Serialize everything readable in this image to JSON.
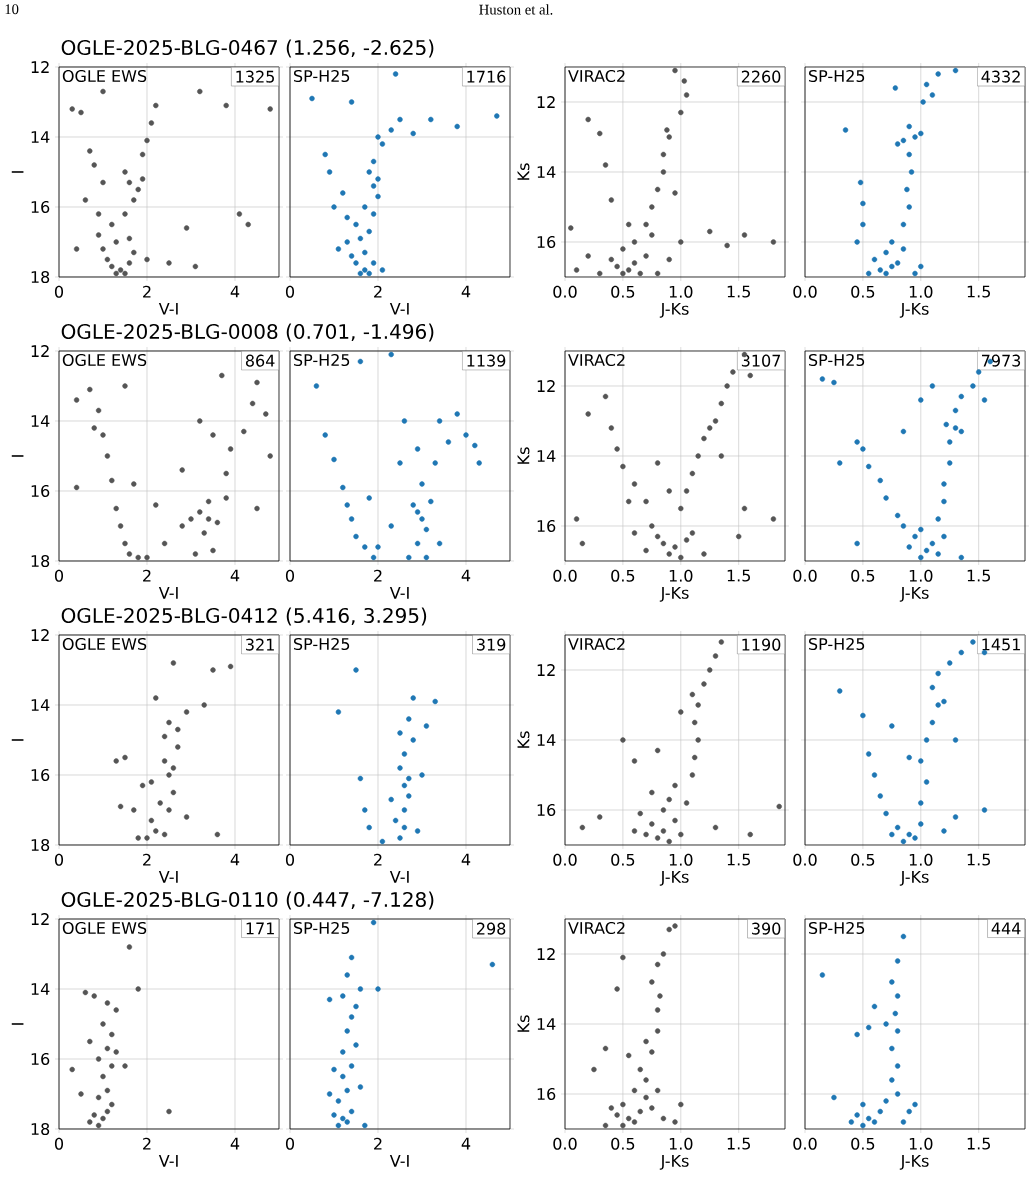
{
  "chart_data": [
    {
      "type": "scatter",
      "title": "OGLE-2025-BLG-0467 (1.256, -2.625)",
      "xlabel": "V-I",
      "ylabel": "I",
      "annotations": [
        "OGLE EWS",
        "1325"
      ],
      "xlim": [
        0,
        5
      ],
      "ylim": [
        18,
        12
      ],
      "xticks": [
        0,
        2,
        4
      ],
      "yticks": [
        12,
        14,
        16,
        18
      ],
      "grid": true,
      "marker": "circle",
      "color": "#555555",
      "x": [
        1.3,
        1.4,
        1.2,
        1.5,
        1.1,
        1.6,
        1.0,
        1.3,
        1.7,
        0.9,
        1.2,
        1.6,
        1.5,
        1.7,
        1.6,
        1.8,
        1.5,
        1.9,
        1.9,
        2.0,
        2.1,
        1.0,
        0.8,
        0.7,
        0.6,
        0.9,
        0.5,
        0.3,
        1.0,
        2.2,
        3.2,
        3.8,
        4.8,
        4.1,
        4.3,
        2.9,
        2.5,
        3.1,
        0.4,
        2.0
      ],
      "values": [
        17.9,
        17.8,
        17.7,
        17.9,
        17.5,
        17.6,
        17.2,
        17.0,
        17.3,
        16.8,
        16.5,
        16.9,
        16.2,
        15.8,
        15.3,
        15.5,
        15.0,
        15.2,
        14.5,
        14.1,
        13.6,
        15.3,
        14.8,
        14.4,
        15.8,
        16.2,
        13.3,
        13.2,
        12.7,
        13.1,
        12.7,
        13.1,
        13.2,
        16.2,
        16.5,
        16.6,
        17.6,
        17.7,
        17.2,
        17.5
      ]
    },
    {
      "type": "scatter",
      "xlabel": "V-I",
      "annotations": [
        "SP-H25",
        "1716"
      ],
      "xlim": [
        0,
        5
      ],
      "ylim": [
        18,
        12
      ],
      "xticks": [
        0,
        2,
        4
      ],
      "yticks": [
        12,
        14,
        16,
        18
      ],
      "tick_labels": "x",
      "grid": true,
      "marker": "circle",
      "color": "#1f77b4",
      "x": [
        1.6,
        1.7,
        1.5,
        1.8,
        1.4,
        1.7,
        1.9,
        1.3,
        1.6,
        1.8,
        1.9,
        1.7,
        2.0,
        1.9,
        1.8,
        2.0,
        1.9,
        2.1,
        2.3,
        2.5,
        2.8,
        3.2,
        3.8,
        4.7,
        1.2,
        1.0,
        0.9,
        0.8,
        0.5,
        1.4,
        2.4,
        1.1,
        2.1,
        1.5,
        2.0,
        1.3
      ],
      "values": [
        17.9,
        17.8,
        17.6,
        17.9,
        17.4,
        17.3,
        17.6,
        17.0,
        16.9,
        16.7,
        16.2,
        16.0,
        15.7,
        15.4,
        15.0,
        15.2,
        14.7,
        14.2,
        13.8,
        13.5,
        13.9,
        13.5,
        13.7,
        13.4,
        15.6,
        16.0,
        15.0,
        14.5,
        12.9,
        13.0,
        12.2,
        17.2,
        17.8,
        16.5,
        14.0,
        16.3
      ]
    },
    {
      "type": "scatter",
      "xlabel": "J-Ks",
      "ylabel": "Ks",
      "annotations": [
        "VIRAC2",
        "2260"
      ],
      "xlim": [
        0,
        1.9
      ],
      "ylim": [
        17,
        11
      ],
      "xticks": [
        {
          "value": 0,
          "label": "0.0"
        },
        {
          "value": 0.5,
          "label": "0.5"
        },
        {
          "value": 1,
          "label": "1.0"
        },
        {
          "value": 1.5,
          "label": "1.5"
        }
      ],
      "yticks": [
        12,
        14,
        16
      ],
      "grid": true,
      "marker": "circle",
      "color": "#555555",
      "x": [
        0.5,
        0.55,
        0.45,
        0.6,
        0.4,
        0.65,
        0.3,
        0.7,
        0.5,
        0.6,
        0.75,
        0.2,
        0.1,
        0.8,
        0.7,
        0.75,
        0.8,
        0.85,
        0.85,
        0.9,
        0.88,
        1.0,
        1.05,
        1.03,
        0.95,
        0.4,
        0.35,
        0.2,
        0.3,
        0.55,
        0.9,
        1.0,
        1.25,
        1.4,
        1.55,
        1.8,
        0.05,
        0.95
      ],
      "values": [
        16.9,
        16.8,
        16.7,
        16.6,
        16.5,
        16.9,
        16.9,
        16.4,
        16.2,
        16.0,
        15.8,
        16.4,
        16.8,
        16.9,
        15.5,
        15.0,
        14.5,
        14.0,
        13.5,
        13.0,
        12.8,
        12.3,
        11.8,
        11.4,
        11.1,
        14.8,
        13.8,
        12.5,
        12.9,
        15.5,
        16.5,
        16.0,
        15.7,
        16.1,
        15.8,
        16.0,
        15.6,
        14.6
      ]
    },
    {
      "type": "scatter",
      "xlabel": "J-Ks",
      "annotations": [
        "SP-H25",
        "4332"
      ],
      "xlim": [
        0,
        1.9
      ],
      "ylim": [
        17,
        11
      ],
      "xticks": [
        {
          "value": 0,
          "label": "0.0"
        },
        {
          "value": 0.5,
          "label": "0.5"
        },
        {
          "value": 1,
          "label": "1.0"
        },
        {
          "value": 1.5,
          "label": "1.5"
        }
      ],
      "yticks": [
        12,
        14,
        16
      ],
      "tick_labels": "x",
      "grid": true,
      "marker": "circle",
      "color": "#1f77b4",
      "x": [
        0.7,
        0.65,
        0.75,
        0.6,
        0.7,
        0.8,
        0.55,
        0.85,
        0.75,
        0.85,
        0.9,
        0.88,
        0.92,
        0.9,
        0.85,
        0.95,
        1.0,
        0.9,
        1.02,
        1.05,
        1.15,
        1.3,
        0.78,
        0.5,
        0.48,
        0.5,
        0.35,
        0.45,
        0.95,
        1.0,
        1.1,
        0.8
      ],
      "values": [
        16.9,
        16.8,
        16.7,
        16.5,
        16.3,
        16.6,
        16.9,
        16.2,
        16.0,
        15.5,
        15.0,
        14.5,
        14.0,
        13.5,
        13.1,
        13.0,
        12.9,
        12.7,
        12.0,
        11.5,
        11.2,
        11.1,
        11.6,
        14.9,
        14.3,
        15.5,
        12.8,
        16.0,
        16.9,
        16.7,
        11.8,
        13.2
      ]
    },
    {
      "type": "scatter",
      "title": "OGLE-2025-BLG-0008 (0.701, -1.496)",
      "xlabel": "V-I",
      "ylabel": "I",
      "annotations": [
        "OGLE EWS",
        "864"
      ],
      "xlim": [
        0,
        5
      ],
      "ylim": [
        18,
        12
      ],
      "xticks": [
        0,
        2,
        4
      ],
      "yticks": [
        12,
        14,
        16,
        18
      ],
      "grid": true,
      "marker": "circle",
      "color": "#555555",
      "x": [
        1.3,
        1.4,
        1.5,
        1.6,
        1.8,
        1.2,
        1.1,
        1.0,
        0.8,
        0.9,
        0.4,
        0.7,
        1.5,
        1.7,
        2.0,
        2.4,
        2.8,
        3.0,
        3.2,
        3.4,
        3.6,
        3.3,
        3.1,
        3.5,
        3.8,
        3.8,
        3.9,
        3.5,
        3.2,
        2.8,
        4.2,
        4.4,
        4.7,
        4.5,
        3.7,
        4.8,
        4.5,
        0.4,
        2.2,
        3.4
      ],
      "values": [
        16.5,
        17.0,
        17.5,
        17.8,
        17.9,
        15.7,
        15.0,
        14.4,
        14.2,
        13.7,
        13.4,
        13.1,
        13.0,
        15.8,
        17.9,
        17.5,
        17.0,
        16.8,
        16.6,
        16.8,
        16.9,
        17.2,
        17.8,
        17.7,
        16.2,
        15.5,
        14.8,
        14.4,
        14.0,
        15.4,
        14.3,
        13.5,
        13.8,
        12.9,
        12.7,
        15.0,
        16.5,
        15.9,
        16.4,
        16.3
      ]
    },
    {
      "type": "scatter",
      "xlabel": "V-I",
      "annotations": [
        "SP-H25",
        "1139"
      ],
      "xlim": [
        0,
        5
      ],
      "ylim": [
        18,
        12
      ],
      "xticks": [
        0,
        2,
        4
      ],
      "yticks": [
        12,
        14,
        16,
        18
      ],
      "tick_labels": "x",
      "grid": true,
      "marker": "circle",
      "color": "#1f77b4",
      "x": [
        1.3,
        1.4,
        1.5,
        1.7,
        1.9,
        2.0,
        1.2,
        1.0,
        0.8,
        0.6,
        1.6,
        2.3,
        2.8,
        2.9,
        3.0,
        3.1,
        2.9,
        3.1,
        2.7,
        3.2,
        3.0,
        3.3,
        2.9,
        3.6,
        4.0,
        4.2,
        3.8,
        3.4,
        2.6,
        4.3,
        2.3,
        1.8,
        3.4,
        2.5
      ],
      "values": [
        16.4,
        16.8,
        17.3,
        17.6,
        17.9,
        17.6,
        15.9,
        15.1,
        14.4,
        13.0,
        12.3,
        12.1,
        16.4,
        16.6,
        16.8,
        17.1,
        17.5,
        17.9,
        17.9,
        16.3,
        15.8,
        15.2,
        14.8,
        14.6,
        14.4,
        14.7,
        13.8,
        14.0,
        14.0,
        15.2,
        17.0,
        16.2,
        17.5,
        15.2
      ]
    },
    {
      "type": "scatter",
      "xlabel": "J-Ks",
      "ylabel": "Ks",
      "annotations": [
        "VIRAC2",
        "3107"
      ],
      "xlim": [
        0,
        1.9
      ],
      "ylim": [
        17,
        11
      ],
      "xticks": [
        {
          "value": 0,
          "label": "0.0"
        },
        {
          "value": 0.5,
          "label": "0.5"
        },
        {
          "value": 1,
          "label": "1.0"
        },
        {
          "value": 1.5,
          "label": "1.5"
        }
      ],
      "yticks": [
        12,
        14,
        16
      ],
      "grid": true,
      "marker": "circle",
      "color": "#555555",
      "x": [
        0.9,
        0.95,
        0.85,
        1.0,
        0.8,
        1.05,
        0.75,
        0.7,
        1.1,
        1.2,
        0.6,
        0.55,
        0.6,
        0.5,
        0.45,
        0.4,
        0.2,
        0.35,
        0.9,
        1.0,
        1.05,
        1.1,
        1.15,
        1.2,
        1.25,
        1.3,
        1.35,
        1.4,
        1.45,
        1.55,
        1.6,
        1.35,
        1.5,
        1.8,
        1.55,
        0.15,
        0.1,
        0.8,
        0.7
      ],
      "values": [
        16.8,
        16.6,
        16.5,
        16.9,
        16.3,
        16.4,
        16.0,
        16.7,
        16.2,
        16.8,
        16.2,
        15.3,
        14.8,
        14.3,
        13.8,
        13.2,
        12.8,
        12.3,
        15.0,
        15.5,
        15.0,
        14.5,
        14.0,
        13.5,
        13.2,
        13.0,
        12.5,
        12.0,
        11.6,
        11.1,
        11.7,
        14.0,
        16.3,
        15.8,
        15.5,
        16.5,
        15.8,
        14.2,
        15.3
      ]
    },
    {
      "type": "scatter",
      "xlabel": "J-Ks",
      "annotations": [
        "SP-H25",
        "7973"
      ],
      "xlim": [
        0,
        1.9
      ],
      "ylim": [
        17,
        11
      ],
      "xticks": [
        {
          "value": 0,
          "label": "0.0"
        },
        {
          "value": 0.5,
          "label": "0.5"
        },
        {
          "value": 1,
          "label": "1.0"
        },
        {
          "value": 1.5,
          "label": "1.5"
        }
      ],
      "yticks": [
        12,
        14,
        16
      ],
      "tick_labels": "x",
      "grid": true,
      "marker": "circle",
      "color": "#1f77b4",
      "x": [
        1.0,
        1.05,
        1.1,
        0.95,
        1.15,
        0.9,
        1.2,
        1.0,
        0.85,
        0.8,
        0.7,
        0.65,
        0.55,
        0.5,
        0.45,
        0.3,
        0.15,
        0.25,
        1.15,
        1.2,
        1.2,
        1.25,
        1.25,
        1.3,
        1.22,
        1.35,
        1.3,
        1.35,
        1.45,
        1.5,
        1.6,
        1.55,
        1.0,
        0.45,
        1.35,
        0.85,
        1.1
      ],
      "values": [
        16.9,
        16.7,
        16.5,
        16.3,
        16.8,
        16.6,
        16.3,
        16.1,
        16.0,
        15.7,
        15.2,
        14.7,
        14.3,
        13.8,
        13.6,
        14.2,
        11.8,
        11.9,
        15.8,
        15.3,
        14.8,
        14.2,
        13.6,
        13.2,
        13.1,
        13.3,
        12.7,
        12.3,
        12.0,
        11.6,
        11.3,
        12.4,
        12.4,
        16.5,
        16.9,
        13.3,
        12.0
      ]
    },
    {
      "type": "scatter",
      "title": "OGLE-2025-BLG-0412 (5.416, 3.295)",
      "xlabel": "V-I",
      "ylabel": "I",
      "annotations": [
        "OGLE EWS",
        "321"
      ],
      "xlim": [
        0,
        5
      ],
      "ylim": [
        18,
        12
      ],
      "xticks": [
        0,
        2,
        4
      ],
      "yticks": [
        12,
        14,
        16,
        18
      ],
      "grid": true,
      "marker": "circle",
      "color": "#555555",
      "x": [
        2.0,
        2.2,
        2.1,
        2.4,
        1.8,
        2.5,
        2.3,
        2.6,
        2.5,
        2.6,
        2.4,
        2.7,
        2.7,
        2.4,
        2.9,
        3.3,
        3.5,
        3.9,
        2.6,
        1.5,
        1.3,
        1.9,
        1.7,
        2.2,
        1.4,
        2.9,
        3.6,
        2.1,
        2.5
      ],
      "values": [
        17.8,
        17.6,
        17.3,
        17.7,
        17.8,
        17.0,
        16.8,
        16.5,
        16.0,
        15.8,
        15.6,
        15.2,
        14.7,
        14.9,
        14.2,
        14.0,
        13.0,
        12.9,
        12.8,
        15.5,
        15.6,
        16.3,
        17.0,
        13.8,
        16.9,
        17.2,
        17.7,
        16.2,
        14.5
      ]
    },
    {
      "type": "scatter",
      "xlabel": "V-I",
      "annotations": [
        "SP-H25",
        "319"
      ],
      "xlim": [
        0,
        5
      ],
      "ylim": [
        18,
        12
      ],
      "xticks": [
        0,
        2,
        4
      ],
      "yticks": [
        12,
        14,
        16,
        18
      ],
      "tick_labels": "x",
      "grid": true,
      "marker": "circle",
      "color": "#1f77b4",
      "x": [
        2.5,
        2.6,
        2.4,
        2.6,
        2.7,
        2.6,
        2.7,
        2.5,
        2.6,
        2.8,
        2.5,
        2.7,
        3.1,
        3.3,
        1.5,
        1.1,
        1.6,
        1.7,
        1.8,
        2.1,
        2.9,
        3.0,
        2.3,
        2.8
      ],
      "values": [
        17.8,
        17.5,
        17.3,
        17.0,
        16.6,
        16.3,
        16.1,
        15.8,
        15.4,
        15.0,
        14.8,
        14.4,
        14.6,
        13.9,
        13.0,
        14.2,
        16.1,
        17.0,
        17.5,
        17.9,
        17.6,
        16.0,
        16.7,
        13.8
      ]
    },
    {
      "type": "scatter",
      "xlabel": "J-Ks",
      "ylabel": "Ks",
      "annotations": [
        "VIRAC2",
        "1190"
      ],
      "xlim": [
        0,
        1.9
      ],
      "ylim": [
        17,
        11
      ],
      "xticks": [
        {
          "value": 0,
          "label": "0.0"
        },
        {
          "value": 0.5,
          "label": "0.5"
        },
        {
          "value": 1,
          "label": "1.0"
        },
        {
          "value": 1.5,
          "label": "1.5"
        }
      ],
      "yticks": [
        12,
        14,
        16
      ],
      "grid": true,
      "marker": "circle",
      "color": "#555555",
      "x": [
        0.8,
        0.85,
        0.9,
        0.75,
        0.95,
        0.7,
        0.65,
        0.85,
        1.0,
        0.6,
        0.9,
        0.95,
        0.75,
        1.05,
        1.1,
        1.12,
        1.15,
        1.12,
        1.15,
        1.1,
        1.2,
        1.25,
        1.3,
        1.35,
        0.5,
        0.6,
        0.3,
        0.15,
        1.3,
        1.6,
        1.85,
        0.8,
        1.0
      ],
      "values": [
        16.8,
        16.6,
        16.9,
        16.4,
        16.3,
        16.7,
        16.1,
        16.0,
        16.7,
        16.6,
        15.7,
        15.3,
        15.5,
        15.8,
        15.0,
        14.5,
        14.0,
        13.5,
        13.0,
        12.7,
        12.4,
        12.0,
        11.6,
        11.2,
        14.0,
        14.6,
        16.2,
        16.5,
        16.5,
        16.7,
        15.9,
        14.3,
        13.2
      ]
    },
    {
      "type": "scatter",
      "xlabel": "J-Ks",
      "annotations": [
        "SP-H25",
        "1451"
      ],
      "xlim": [
        0,
        1.9
      ],
      "ylim": [
        17,
        11
      ],
      "xticks": [
        {
          "value": 0,
          "label": "0.0"
        },
        {
          "value": 0.5,
          "label": "0.5"
        },
        {
          "value": 1,
          "label": "1.0"
        },
        {
          "value": 1.5,
          "label": "1.5"
        }
      ],
      "yticks": [
        12,
        14,
        16
      ],
      "tick_labels": "x",
      "grid": true,
      "marker": "circle",
      "color": "#1f77b4",
      "x": [
        0.85,
        0.9,
        0.8,
        0.95,
        0.75,
        1.0,
        0.7,
        0.65,
        0.6,
        0.55,
        0.5,
        0.3,
        1.0,
        1.05,
        1.0,
        1.05,
        1.1,
        1.15,
        1.2,
        1.1,
        1.15,
        1.25,
        1.35,
        1.45,
        1.55,
        1.3,
        0.9,
        0.75,
        1.2,
        1.55,
        1.3
      ],
      "values": [
        16.9,
        16.7,
        16.5,
        16.8,
        16.7,
        16.4,
        16.1,
        15.6,
        15.0,
        14.4,
        13.3,
        12.6,
        15.8,
        15.2,
        14.6,
        14.0,
        13.5,
        13.0,
        12.9,
        12.5,
        12.1,
        11.8,
        11.5,
        11.2,
        11.5,
        14.0,
        14.5,
        13.6,
        16.6,
        16.0,
        16.2
      ]
    },
    {
      "type": "scatter",
      "title": "OGLE-2025-BLG-0110 (0.447, -7.128)",
      "xlabel": "V-I",
      "ylabel": "I",
      "annotations": [
        "OGLE EWS",
        "171"
      ],
      "xlim": [
        0,
        5
      ],
      "ylim": [
        18,
        12
      ],
      "xticks": [
        0,
        2,
        4
      ],
      "yticks": [
        12,
        14,
        16,
        18
      ],
      "grid": true,
      "marker": "circle",
      "color": "#555555",
      "x": [
        0.9,
        1.0,
        1.1,
        0.8,
        1.2,
        0.9,
        1.1,
        1.0,
        1.2,
        0.9,
        1.1,
        1.3,
        1.2,
        1.0,
        1.1,
        0.8,
        0.6,
        0.7,
        0.5,
        0.3,
        1.6,
        1.8,
        1.5,
        2.5,
        0.7,
        1.3
      ],
      "values": [
        17.9,
        17.7,
        17.5,
        17.6,
        17.3,
        17.1,
        16.9,
        16.5,
        16.2,
        16.0,
        15.7,
        15.8,
        15.3,
        15.0,
        14.4,
        14.2,
        14.1,
        15.5,
        17.0,
        16.3,
        12.8,
        14.0,
        16.2,
        17.5,
        17.8,
        14.6
      ]
    },
    {
      "type": "scatter",
      "xlabel": "V-I",
      "annotations": [
        "SP-H25",
        "298"
      ],
      "xlim": [
        0,
        5
      ],
      "ylim": [
        18,
        12
      ],
      "xticks": [
        0,
        2,
        4
      ],
      "yticks": [
        12,
        14,
        16,
        18
      ],
      "tick_labels": "x",
      "grid": true,
      "marker": "circle",
      "color": "#1f77b4",
      "x": [
        1.1,
        1.2,
        1.0,
        1.3,
        1.4,
        1.1,
        1.3,
        1.2,
        1.0,
        1.4,
        1.2,
        1.5,
        1.3,
        1.4,
        1.5,
        1.2,
        0.9,
        1.3,
        1.4,
        1.6,
        2.0,
        1.6,
        0.9,
        1.7,
        4.6,
        1.9
      ],
      "values": [
        17.9,
        17.7,
        17.6,
        17.8,
        17.5,
        17.2,
        16.9,
        16.5,
        16.3,
        16.2,
        15.8,
        15.6,
        15.2,
        14.8,
        14.5,
        14.2,
        14.3,
        13.6,
        13.1,
        14.0,
        14.0,
        16.8,
        17.0,
        17.9,
        13.3,
        12.1
      ]
    },
    {
      "type": "scatter",
      "xlabel": "J-Ks",
      "ylabel": "Ks",
      "annotations": [
        "VIRAC2",
        "390"
      ],
      "xlim": [
        0,
        1.9
      ],
      "ylim": [
        17,
        11
      ],
      "xticks": [
        {
          "value": 0,
          "label": "0.0"
        },
        {
          "value": 0.5,
          "label": "0.5"
        },
        {
          "value": 1,
          "label": "1.0"
        },
        {
          "value": 1.5,
          "label": "1.5"
        }
      ],
      "yticks": [
        12,
        14,
        16
      ],
      "grid": true,
      "marker": "circle",
      "color": "#555555",
      "x": [
        0.5,
        0.55,
        0.45,
        0.6,
        0.4,
        0.5,
        0.65,
        0.35,
        0.7,
        0.6,
        0.75,
        0.7,
        0.65,
        0.8,
        0.85,
        0.75,
        0.7,
        0.8,
        0.8,
        0.82,
        0.75,
        0.8,
        0.85,
        0.9,
        0.95,
        0.45,
        0.5,
        0.35,
        0.25,
        1.0,
        0.95,
        0.55
      ],
      "values": [
        16.9,
        16.7,
        16.6,
        16.8,
        16.4,
        16.3,
        16.5,
        16.9,
        16.1,
        15.9,
        16.4,
        15.6,
        15.3,
        15.9,
        16.7,
        14.8,
        14.5,
        14.2,
        13.6,
        13.2,
        12.8,
        12.3,
        12.0,
        11.3,
        11.2,
        13.0,
        12.1,
        14.7,
        15.3,
        16.3,
        16.8,
        14.9
      ]
    },
    {
      "type": "scatter",
      "xlabel": "J-Ks",
      "annotations": [
        "SP-H25",
        "444"
      ],
      "xlim": [
        0,
        1.9
      ],
      "ylim": [
        17,
        11
      ],
      "xticks": [
        {
          "value": 0,
          "label": "0.0"
        },
        {
          "value": 0.5,
          "label": "0.5"
        },
        {
          "value": 1,
          "label": "1.0"
        },
        {
          "value": 1.5,
          "label": "1.5"
        }
      ],
      "yticks": [
        12,
        14,
        16
      ],
      "tick_labels": "x",
      "grid": true,
      "marker": "circle",
      "color": "#1f77b4",
      "x": [
        0.5,
        0.55,
        0.45,
        0.6,
        0.5,
        0.65,
        0.4,
        0.7,
        0.8,
        0.75,
        0.9,
        0.85,
        0.8,
        0.75,
        0.8,
        0.78,
        0.8,
        0.75,
        0.8,
        0.85,
        0.6,
        0.55,
        0.45,
        0.15,
        0.25,
        0.95,
        0.7
      ],
      "values": [
        16.9,
        16.7,
        16.6,
        16.8,
        16.3,
        16.5,
        16.8,
        16.2,
        16.0,
        15.6,
        16.5,
        16.8,
        15.2,
        14.7,
        14.2,
        13.7,
        13.2,
        12.8,
        12.2,
        11.5,
        13.5,
        14.1,
        14.3,
        12.6,
        16.1,
        16.3,
        14.0
      ]
    },
    {
      "type": "other",
      "annotations": [
        "10",
        "Huston et al."
      ]
    }
  ]
}
